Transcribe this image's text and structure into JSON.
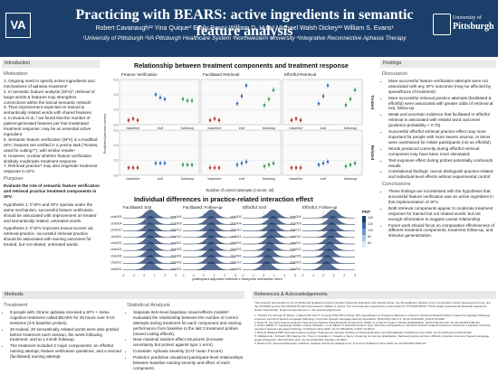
{
  "header": {
    "va_logo": "VA",
    "title": "Practicing with BEARS: active ingredients in semantic feature analysis",
    "authors": "Robert Cavanaugh¹² Yina Quique³ Emily Boss⁴ William D. Hula² Michael Walsh Dickey¹² William S. Evans¹",
    "affiliations": "¹University of Pittsburgh ²VA Pittsburgh Healthcare System ³Northwestern University ⁴Integrative Reconnective Aphasia Therapy",
    "pitt_small": "University of",
    "pitt_big": "Pittsburgh"
  },
  "intro": {
    "heading": "Introduction",
    "motivation": "Motivation",
    "items": [
      "1. Ongoing need to specify active ingredients and mechanisms of aphasia treatment¹",
      "2. In semantic feature analysis (SFA)², retrieval of target words & features may strengthen connections within the lexical-semantic network",
      "3. Thus improvement expected on trained & semantically related words with shared features.",
      "4. In Evans et al.,³ we found that the number of patient-generated features per trial moderated treatment response; may be an essential active ingredient",
      "5. Semantic feature verification (SFV) is a modified SFA: features are verified in a yes/no task (“Knives, used for cutting?”), with similar results⁴",
      "6. However, unclear whether feature verification similarly moderates treatment response",
      "7. Retrieval practice⁵ may also engender treatment response in SFV."
    ],
    "purpose": "Purpose",
    "purpose_text": "Evaluate the role of semantic feature verification and retrieval practice treatment components in SFV.",
    "h1": "Hypothesis 1: If SFA and SFV operate under the same mechanism, successful feature verification should be associated with improvement on treated and semantically related, untreated words.",
    "h2": "Hypothesis 2: If SFV improves lexical access via retrieval-practice, successful retrieval practice should be associated with naming outcomes for treated, but not related, untreated words."
  },
  "methods": {
    "heading": "Methods",
    "treatment": "Treatment",
    "treatment_items": [
      "9 people with chronic aphasia received a SFV + meta-cognitive treatment called BEARS for 25 hours over 9-10 sessions (3-5 baseline probes).",
      "40 trained, 20 semantically related words were also probed before treatment each session, the week following treatment, and at 1 month followup.",
      "The treatment included 3 major components: an effortful naming attempt, feature verification questions, and a second (facilitated) naming attempt."
    ],
    "stats": "Statistical Analysis",
    "stats_items": [
      "Separate item-level bayesian mixed-effects models⁶ evaluated the relationship between the number of correct attempts during treatment for each component and naming performance from baseline to the last 3 treatment probes (mixed coding effects).",
      "Near maximal random-effect structures (increase uncertainty but protect against type 1 error)",
      "Covariate: Aphasia Severity (CAT mean T-score)",
      "Posterior predictive visualized participant-level relationships between baseline naming severity and effect of each component."
    ]
  },
  "center": {
    "fig1_title": "Relationship between treatment components and treatment response",
    "facets": [
      "Feature Verification",
      "Facilitated Retrieval",
      "Effortful Retrieval"
    ],
    "row_labels": [
      "Treated",
      "Related"
    ],
    "ylabel": "Predicted percent correct",
    "xticks": [
      "baseline",
      "exit",
      "followup"
    ],
    "ytick_labels": [
      "0.3",
      "0.2",
      "0.1",
      "0.0"
    ],
    "xlabel": "Number of correct attempts (z-score; sd)",
    "fig2_title": "Individual differences in practice-related interaction effect",
    "ridge_panels": [
      "Facilitated: Exit",
      "Facilitated: Follow-up",
      "Effortful: Exit",
      "Effortful: Follow-up"
    ],
    "ridge_left": [
      "cba005",
      "cba004",
      "cba010",
      "cba011",
      "cba002",
      "cba003",
      "cba006",
      "cba012",
      "cba001"
    ],
    "ridge_right": [
      "cba004",
      "cba009",
      "cba012",
      "cba010",
      "cba011",
      "cba002",
      "cba006",
      "cba003",
      "cba001"
    ],
    "ridge_xticks": [
      "-2",
      "-1",
      "0",
      "1",
      "2",
      "3"
    ],
    "ridge_xlabel": "participant-adjusted retrieval x timepoint interaction term",
    "legend_title": "PNT",
    "legend_ticks": [
      "140",
      "120",
      "100",
      "80",
      "60"
    ]
  },
  "findings": {
    "heading": "Findings",
    "discussion": "Discussion",
    "items": [
      "More successful feature verification attempts were not associated with any SFV outcomes (may be affected by speed/focus of treatment)",
      "More successful retrieval practice attempts (facilitated & effortful) were associated with greater odds of retrieval at exit, follow-up.",
      "Weak and uncertain evidence that facilitated or effortful retrieval is associated with related word outcomes (posterior probability < 0.75).",
      "Successful effortful retrieval practice effect may more important for people with more severe anomia; or items were overtrained for milder participants (not as effortful).",
      "Words produced correctly during effortful retrieval component may have been more stimulated.",
      "Test-exposure effect during probes potentially confounds results",
      "Correlational findings; cannot distinguish practice-related and individual-level effects without experimental control"
    ],
    "conclusions": "Conclusions",
    "conclusion_items": [
      "These findings are inconsistent with the hypothesis that successful feature verification was an active ingredient in this implementation of SFV.",
      "Both retrieval components appear to moderate treatment response for trained but not related words; but not enough information to suggest causal relationship.",
      "Future work should focus on comparative effectiveness of different treatment components, treatment follow-up, and stimulus generalization."
    ]
  },
  "references": {
    "heading": "References & Acknowledgements",
    "ack": "This research was funded by the VA Pittsburgh Healthcare System Geriatric Research Education and Clinical Center, the VA Healthcare Network 1/VA 4 Competitive Career Development Fund, and the VA RR&D service (IK1 RX002475) with initial award to William S. Evans. The work was also supported by a NIH UH23.72 ???XX100 BPNC ??XXX award (professional fellowship awarded to Robert Cavanaugh). Email correspondence to: rob.cavanaugh@pitt.edu",
    "items": [
      "1. Turkstra LS, Norman R, Whyte J, Dijkers MP, Hart T. Knowing What We're Doing: Why Specification of Treatment Methods is Critical for Evidence-Based Practice in Speech-Language Pathology. American Journal of Speech-Language Pathology / American Speech-Language-Hearing Association. 2016;25(2):164-171. doi:10.1044/2015_AJSLP-15-0060",
      "2. Boyle M. Semantic Feature Analysis Treatment for Aphasic Word Retrieval Impairments: What's in a Name? Topics in Stroke Rehabilitation. 2010;17(6):411-422. doi:10.1310/tsr1706-411",
      "3. Evans William S, Cavanaugh Robert, Gravier Michelle L, et al. Effects of Semantic Feature Type, Diversity, and Quantity on Semantic Feature Analysis Treatment Outcomes in Aphasia. American Journal of Speech-Language Pathology. Published online 2020. doi:10.1044/2020_AJSLP-19-00112",
      "4. Boss E. Bilateral PBS Semantic Feature Analysis Treatment for Aphasia. Archives of Physical Medicine and Rehabilitation. Published online 2019. doi:10.1016/j.apmr.2019.09.002",
      "5. Middleton EL, Schwartz MF, Rawson KA, Traut H, Verkuilen J. Towards a theory of learning for naming rehabilitation: Retrieval practice and item difficulty. American Journal of Speech-Language Hearing Research. 2016;59:1111-1121. doi:10.1044/2016_JSLHR-L-15-0303",
      "6. Bürkner PC. Advanced Bayesian multilevel modeling with the R package brms. R Journal. Published online 2018. doi:10.32614/RJ-2018-017"
    ]
  },
  "colors": {
    "header_bg": "#1b3f6a",
    "baseline": "#b8312f",
    "exit": "#2e6fb5",
    "followup": "#3a9a4a",
    "ridge": "#1c3b6d"
  },
  "chart_data": [
    {
      "type": "scatter",
      "title": "Relationship between treatment components and treatment response",
      "facets": [
        "Feature Verification",
        "Facilitated Retrieval",
        "Effortful Retrieval"
      ],
      "rows": [
        "Treated",
        "Related"
      ],
      "xlabel": "Number of correct attempts (z-score; sd)",
      "ylabel": "Predicted percent correct",
      "categories": [
        "baseline",
        "exit",
        "followup"
      ],
      "ylim": [
        0,
        0.3
      ],
      "series_names": [
        "-1",
        "0",
        "+1"
      ],
      "cells": [
        {
          "facet": "Feature Verification",
          "row": "Treated",
          "values": [
            [
              0.03,
              0.04,
              0.03
            ],
            [
              0.2,
              0.18,
              0.17
            ],
            [
              0.17,
              0.16,
              0.16
            ]
          ]
        },
        {
          "facet": "Facilitated Retrieval",
          "row": "Treated",
          "values": [
            [
              0.03,
              0.04,
              0.03
            ],
            [
              0.14,
              0.19,
              0.26
            ],
            [
              0.13,
              0.17,
              0.23
            ]
          ]
        },
        {
          "facet": "Effortful Retrieval",
          "row": "Treated",
          "values": [
            [
              0.03,
              0.04,
              0.03
            ],
            [
              0.14,
              0.19,
              0.26
            ],
            [
              0.13,
              0.17,
              0.23
            ]
          ]
        },
        {
          "facet": "Feature Verification",
          "row": "Related",
          "values": [
            [
              0.05,
              0.05,
              0.05
            ],
            [
              0.08,
              0.08,
              0.08
            ],
            [
              0.07,
              0.07,
              0.07
            ]
          ]
        },
        {
          "facet": "Facilitated Retrieval",
          "row": "Related",
          "values": [
            [
              0.05,
              0.05,
              0.05
            ],
            [
              0.07,
              0.08,
              0.09
            ],
            [
              0.06,
              0.07,
              0.08
            ]
          ]
        },
        {
          "facet": "Effortful Retrieval",
          "row": "Related",
          "values": [
            [
              0.05,
              0.05,
              0.05
            ],
            [
              0.07,
              0.08,
              0.09
            ],
            [
              0.06,
              0.07,
              0.08
            ]
          ]
        }
      ]
    },
    {
      "type": "area",
      "title": "Individual differences in practice-related interaction effect",
      "xlabel": "participant-adjusted retrieval x timepoint interaction term",
      "xlim": [
        -2,
        3
      ],
      "legend": "PNT",
      "panels": [
        {
          "name": "Facilitated: Exit",
          "participants": [
            "cba005",
            "cba004",
            "cba010",
            "cba011",
            "cba002",
            "cba003",
            "cba006",
            "cba012",
            "cba001"
          ],
          "means": [
            0.6,
            0.6,
            0.6,
            0.6,
            0.6,
            0.6,
            0.6,
            0.6,
            0.6
          ]
        },
        {
          "name": "Facilitated: Follow-up",
          "participants": [
            "cba004",
            "cba009",
            "cba012",
            "cba010",
            "cba011",
            "cba002",
            "cba006",
            "cba003",
            "cba001"
          ],
          "means": [
            0.7,
            0.7,
            0.7,
            0.7,
            0.7,
            0.7,
            0.7,
            0.7,
            0.7
          ]
        },
        {
          "name": "Effortful: Exit",
          "participants": [
            "cba005",
            "cba004",
            "cba010",
            "cba011",
            "cba002",
            "cba003",
            "cba006",
            "cba012",
            "cba001"
          ],
          "means": [
            0.9,
            0.9,
            0.8,
            0.8,
            0.7,
            0.6,
            0.5,
            0.4,
            0.3
          ]
        },
        {
          "name": "Effortful: Follow-up",
          "participants": [
            "cba004",
            "cba009",
            "cba012",
            "cba010",
            "cba011",
            "cba002",
            "cba006",
            "cba003",
            "cba001"
          ],
          "means": [
            0.9,
            0.9,
            0.8,
            0.8,
            0.7,
            0.6,
            0.5,
            0.4,
            0.3
          ]
        }
      ]
    }
  ]
}
